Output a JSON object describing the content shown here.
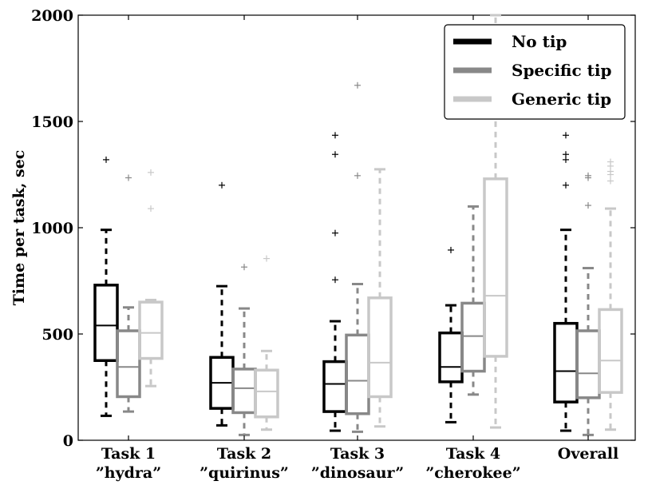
{
  "chart_data": {
    "type": "boxplot",
    "title": "",
    "xlabel": "",
    "ylabel": "Time per task, sec",
    "ylim": [
      0,
      2000
    ],
    "yticks": [
      0,
      500,
      1000,
      1500,
      2000
    ],
    "grid": false,
    "legend_position": "top-right",
    "categories": [
      {
        "line1": "Task 1",
        "line2": "”hydra”"
      },
      {
        "line1": "Task 2",
        "line2": "”quirinus”"
      },
      {
        "line1": "Task 3",
        "line2": "”dinosaur”"
      },
      {
        "line1": "Task 4",
        "line2": "”cherokee”"
      },
      {
        "line1": "Overall",
        "line2": ""
      }
    ],
    "series": [
      {
        "name": "No tip",
        "color": "#000000",
        "boxes": [
          {
            "whislo": 115,
            "q1": 375,
            "med": 540,
            "q3": 730,
            "whishi": 990,
            "fliers": [
              1320
            ]
          },
          {
            "whislo": 70,
            "q1": 150,
            "med": 270,
            "q3": 390,
            "whishi": 725,
            "fliers": [
              1200
            ]
          },
          {
            "whislo": 45,
            "q1": 135,
            "med": 265,
            "q3": 370,
            "whishi": 560,
            "fliers": [
              755,
              975,
              1345,
              1435
            ]
          },
          {
            "whislo": 85,
            "q1": 275,
            "med": 345,
            "q3": 505,
            "whishi": 635,
            "fliers": [
              895
            ]
          },
          {
            "whislo": 45,
            "q1": 180,
            "med": 325,
            "q3": 550,
            "whishi": 990,
            "fliers": [
              1200,
              1320,
              1345,
              1435
            ]
          }
        ]
      },
      {
        "name": "Specific tip",
        "color": "#888888",
        "boxes": [
          {
            "whislo": 135,
            "q1": 205,
            "med": 345,
            "q3": 515,
            "whishi": 625,
            "fliers": [
              1235
            ]
          },
          {
            "whislo": 25,
            "q1": 130,
            "med": 245,
            "q3": 335,
            "whishi": 620,
            "fliers": [
              815
            ]
          },
          {
            "whislo": 40,
            "q1": 125,
            "med": 280,
            "q3": 495,
            "whishi": 735,
            "fliers": [
              1245,
              1670
            ]
          },
          {
            "whislo": 215,
            "q1": 325,
            "med": 490,
            "q3": 645,
            "whishi": 1100,
            "fliers": []
          },
          {
            "whislo": 25,
            "q1": 200,
            "med": 315,
            "q3": 515,
            "whishi": 810,
            "fliers": [
              1105,
              1235,
              1245
            ]
          }
        ]
      },
      {
        "name": "Generic tip",
        "color": "#c8c8c8",
        "boxes": [
          {
            "whislo": 255,
            "q1": 385,
            "med": 505,
            "q3": 650,
            "whishi": 660,
            "fliers": [
              1090,
              1260
            ]
          },
          {
            "whislo": 50,
            "q1": 110,
            "med": 230,
            "q3": 330,
            "whishi": 420,
            "fliers": [
              855
            ]
          },
          {
            "whislo": 65,
            "q1": 205,
            "med": 365,
            "q3": 670,
            "whishi": 1275,
            "fliers": []
          },
          {
            "whislo": 60,
            "q1": 395,
            "med": 680,
            "q3": 1230,
            "whishi": 2000,
            "fliers": []
          },
          {
            "whislo": 50,
            "q1": 225,
            "med": 375,
            "q3": 615,
            "whishi": 1090,
            "fliers": [
              1220,
              1250,
              1265,
              1290,
              1310
            ]
          }
        ]
      }
    ]
  }
}
